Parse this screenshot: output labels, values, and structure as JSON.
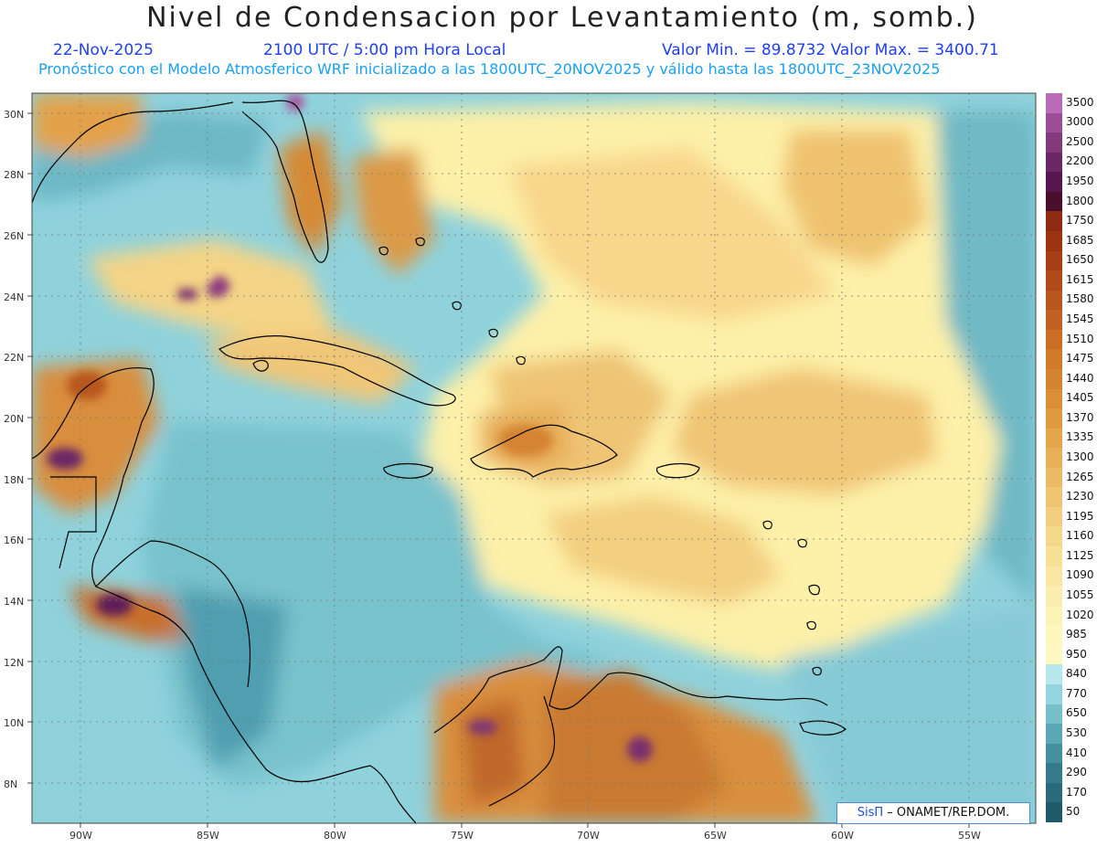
{
  "header": {
    "title": "Nivel de Condensacion por Levantamiento (m, somb.)",
    "date": "22-Nov-2025",
    "time": "2100 UTC / 5:00 pm Hora Local",
    "minmax": "Valor Min. = 89.8732  Valor Max. = 3400.71",
    "model_info": "Pronóstico con el Modelo Atmosferico WRF inicializado a las 1800UTC_20NOV2025 y válido hasta las  1800UTC_23NOV2025"
  },
  "axes": {
    "lat_labels": [
      "30N",
      "28N",
      "26N",
      "24N",
      "22N",
      "20N",
      "18N",
      "16N",
      "14N",
      "12N",
      "10N",
      "8N"
    ],
    "lon_labels": [
      "90W",
      "85W",
      "80W",
      "75W",
      "70W",
      "65W",
      "60W",
      "55W"
    ]
  },
  "legend": {
    "labels": [
      "3500",
      "3000",
      "2500",
      "2200",
      "1950",
      "1800",
      "1750",
      "1685",
      "1650",
      "1615",
      "1580",
      "1545",
      "1510",
      "1475",
      "1440",
      "1405",
      "1370",
      "1335",
      "1300",
      "1265",
      "1230",
      "1195",
      "1160",
      "1125",
      "1090",
      "1055",
      "1020",
      "985",
      "950",
      "840",
      "770",
      "650",
      "530",
      "410",
      "290",
      "170",
      "50"
    ],
    "colors": [
      "#b96ab8",
      "#9c4d98",
      "#823a7c",
      "#6c2766",
      "#581650",
      "#4a0f2c",
      "#8e2a12",
      "#9c3412",
      "#a63e16",
      "#b04a1a",
      "#b9561e",
      "#c26222",
      "#ca6e26",
      "#d07a2a",
      "#d48430",
      "#da8f36",
      "#df9a40",
      "#e4a64a",
      "#e8b058",
      "#ecba64",
      "#efc470",
      "#f2ce7e",
      "#f5d78a",
      "#f7df96",
      "#f9e6a2",
      "#fbedaf",
      "#fcf2b6",
      "#fdf6bd",
      "#fef9c2",
      "#b7e6ec",
      "#94d4df",
      "#76bfcb",
      "#5aa8b6",
      "#4590a0",
      "#347a8a",
      "#2a6a7a",
      "#1f5a6a"
    ]
  },
  "credit": {
    "brand": "SisΠ",
    "org": " – ONAMET/REP.DOM."
  }
}
